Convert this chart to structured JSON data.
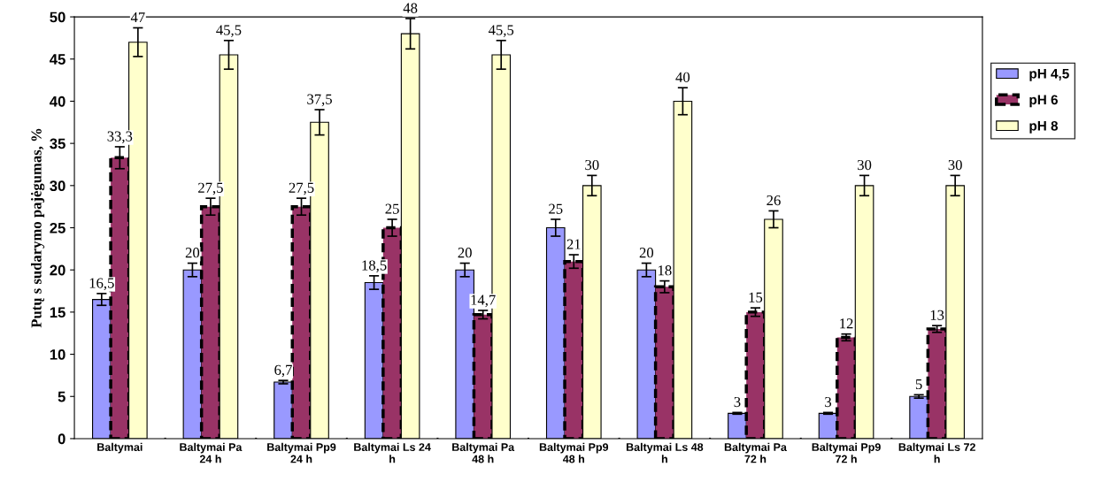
{
  "chart_data": {
    "type": "bar",
    "ylabel": "Putų s sudarymo pajėgumas, %",
    "categories": [
      "Baltymai",
      "Baltymai Pa\n24 h",
      "Baltymai Pp9\n24 h",
      "Baltymai Ls 24\nh",
      "Baltymai Pa\n48 h",
      "Baltymai Pp9\n48 h",
      "Baltymai Ls 48\nh",
      "Baltymai Pa\n72 h",
      "Baltymai Pp9\n72 h",
      "Baltymai Ls 72\nh"
    ],
    "series": [
      {
        "name": "pH 4,5",
        "color": "#9999ff",
        "values": [
          16.5,
          20,
          6.7,
          18.5,
          20,
          25,
          20,
          3,
          3,
          5
        ],
        "errors": [
          0.7,
          0.8,
          0.2,
          0.8,
          0.8,
          1.0,
          0.8,
          0.1,
          0.1,
          0.2
        ],
        "value_labels": [
          "16,5",
          "20",
          "6,7",
          "18,5",
          "20",
          "25",
          "20",
          "3",
          "3",
          "5"
        ]
      },
      {
        "name": "pH 6",
        "color": "#993366",
        "line_style": "dashed",
        "values": [
          33.3,
          27.5,
          27.5,
          25,
          14.7,
          21,
          18,
          15,
          12,
          13
        ],
        "errors": [
          1.3,
          1.0,
          1.0,
          1.0,
          0.5,
          0.8,
          0.7,
          0.5,
          0.4,
          0.4
        ],
        "value_labels": [
          "33,3",
          "27,5",
          "27,5",
          "25",
          "14,7",
          "21",
          "18",
          "15",
          "12",
          "13"
        ]
      },
      {
        "name": "pH 8",
        "color": "#ffffcc",
        "values": [
          47,
          45.5,
          37.5,
          48,
          45.5,
          30,
          40,
          26,
          30,
          30
        ],
        "errors": [
          1.7,
          1.7,
          1.5,
          1.8,
          1.7,
          1.2,
          1.6,
          1.0,
          1.2,
          1.2
        ],
        "value_labels": [
          "47",
          "45,5",
          "37,5",
          "48",
          "45,5",
          "30",
          "40",
          "26",
          "30",
          "30"
        ]
      }
    ],
    "ylim": [
      0,
      50
    ],
    "yticks": [
      0,
      5,
      10,
      15,
      20,
      25,
      30,
      35,
      40,
      45,
      50
    ],
    "grid": false,
    "legend": "top right"
  }
}
